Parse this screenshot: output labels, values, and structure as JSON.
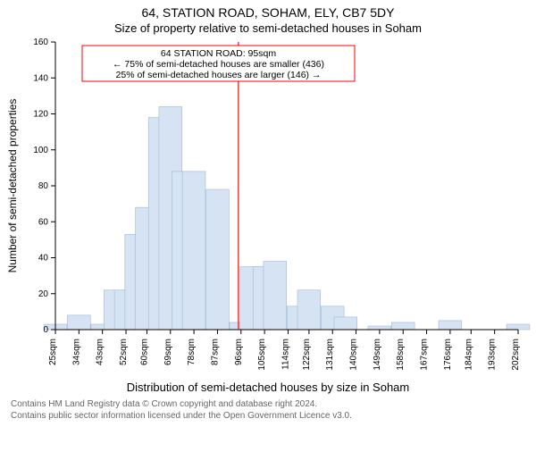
{
  "titles": {
    "main": "64, STATION ROAD, SOHAM, ELY, CB7 5DY",
    "sub": "Size of property relative to semi-detached houses in Soham"
  },
  "ylabel": "Number of semi-detached properties",
  "xlabel": "Distribution of semi-detached houses by size in Soham",
  "annotation": {
    "line1": "64 STATION ROAD: 95sqm",
    "line2": "← 75% of semi-detached houses are smaller (436)",
    "line3": "25% of semi-detached houses are larger (146) →"
  },
  "footer": {
    "line1": "Contains HM Land Registry data © Crown copyright and database right 2024.",
    "line2": "Contains public sector information licensed under the Open Government Licence v3.0."
  },
  "chart": {
    "type": "histogram",
    "background_color": "#ffffff",
    "axis_color": "#000000",
    "bar_fill": "#d6e3f3",
    "bar_stroke": "#9fb8d8",
    "marker_line_color": "#ff0000",
    "annotation_border": "#ff0000",
    "annotation_bg": "#ffffff",
    "text_color": "#000000",
    "tick_fontsize": 10,
    "label_fontsize": 12,
    "title_fontsize": 14,
    "ylim": [
      0,
      160
    ],
    "ytick_step": 20,
    "x_ticks_sqm": [
      25,
      34,
      43,
      52,
      60,
      69,
      78,
      87,
      96,
      105,
      114,
      122,
      131,
      140,
      149,
      158,
      167,
      176,
      184,
      193,
      202
    ],
    "marker_x_sqm": 95,
    "bars": [
      {
        "x": 25,
        "h": 3
      },
      {
        "x": 34,
        "h": 8
      },
      {
        "x": 43,
        "h": 3
      },
      {
        "x": 48,
        "h": 22
      },
      {
        "x": 52,
        "h": 22
      },
      {
        "x": 56,
        "h": 53
      },
      {
        "x": 60,
        "h": 68
      },
      {
        "x": 65,
        "h": 118
      },
      {
        "x": 69,
        "h": 124
      },
      {
        "x": 74,
        "h": 88
      },
      {
        "x": 78,
        "h": 88
      },
      {
        "x": 87,
        "h": 78
      },
      {
        "x": 96,
        "h": 4
      },
      {
        "x": 100,
        "h": 35
      },
      {
        "x": 105,
        "h": 35
      },
      {
        "x": 109,
        "h": 38
      },
      {
        "x": 118,
        "h": 13
      },
      {
        "x": 122,
        "h": 22
      },
      {
        "x": 131,
        "h": 13
      },
      {
        "x": 136,
        "h": 7
      },
      {
        "x": 149,
        "h": 2
      },
      {
        "x": 158,
        "h": 4
      },
      {
        "x": 176,
        "h": 5
      },
      {
        "x": 202,
        "h": 3
      }
    ],
    "bar_width_sqm": 8.8
  }
}
